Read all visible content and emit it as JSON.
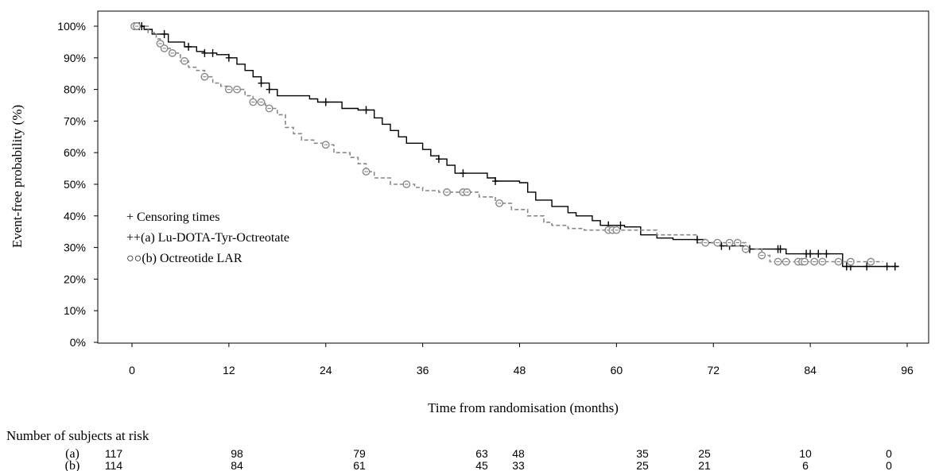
{
  "chart_data": {
    "type": "line",
    "xlabel": "Time from randomisation (months)",
    "ylabel": "Event-free probability (%)",
    "xlim": [
      0,
      96
    ],
    "ylim": [
      0,
      100
    ],
    "x_ticks": [
      0,
      12,
      24,
      36,
      48,
      60,
      72,
      84,
      96
    ],
    "y_ticks": [
      0,
      10,
      20,
      30,
      40,
      50,
      60,
      70,
      80,
      90,
      100
    ],
    "y_tick_suffix": "%",
    "grid": false,
    "legend": {
      "placement": "middle-left",
      "entries": [
        {
          "marker": "+",
          "label": "Censoring times"
        },
        {
          "marker": "++",
          "label": "(a) Lu-DOTA-Tyr-Octreotate"
        },
        {
          "marker": "○○",
          "label": "(b) Octreotide LAR"
        }
      ]
    },
    "series": [
      {
        "name": "(a) Lu-DOTA-Tyr-Octreotate",
        "color": "#000000",
        "line_style": "solid",
        "censor_marker": "+",
        "steps": [
          [
            0,
            100
          ],
          [
            1.5,
            99
          ],
          [
            2.5,
            97.5
          ],
          [
            4.5,
            95
          ],
          [
            6.5,
            93.5
          ],
          [
            8,
            92
          ],
          [
            9,
            91.5
          ],
          [
            10.5,
            91
          ],
          [
            12,
            90
          ],
          [
            13,
            88
          ],
          [
            14,
            86
          ],
          [
            15,
            84
          ],
          [
            16,
            82
          ],
          [
            17,
            80
          ],
          [
            18,
            78
          ],
          [
            20,
            78
          ],
          [
            22,
            77
          ],
          [
            23,
            76
          ],
          [
            26,
            74
          ],
          [
            28,
            73.5
          ],
          [
            30,
            71
          ],
          [
            31,
            69
          ],
          [
            32,
            67
          ],
          [
            33,
            65
          ],
          [
            34,
            63
          ],
          [
            36,
            61
          ],
          [
            37,
            59
          ],
          [
            38,
            58
          ],
          [
            39,
            56
          ],
          [
            40,
            53.5
          ],
          [
            44,
            52
          ],
          [
            45,
            51
          ],
          [
            48,
            50.5
          ],
          [
            49,
            47.5
          ],
          [
            50,
            45
          ],
          [
            52,
            43
          ],
          [
            54,
            41
          ],
          [
            55,
            40
          ],
          [
            57,
            38.5
          ],
          [
            58,
            37
          ],
          [
            61,
            36.5
          ],
          [
            63,
            34
          ],
          [
            65,
            33
          ],
          [
            67,
            32.5
          ],
          [
            71,
            31.5
          ],
          [
            73,
            30.5
          ],
          [
            76,
            29.5
          ],
          [
            81,
            28
          ],
          [
            88,
            24
          ],
          [
            95,
            24
          ]
        ],
        "censor_x": [
          0.3,
          0.6,
          0.9,
          1.2,
          4,
          7,
          9,
          10,
          12,
          16,
          17,
          24,
          29,
          38,
          41,
          45,
          59,
          60.5,
          70,
          73,
          74,
          76,
          76.5,
          80,
          80.3,
          83.5,
          84,
          85,
          86,
          88.5,
          89,
          91,
          93.5,
          94.5
        ]
      },
      {
        "name": "(b) Octreotide LAR",
        "color": "#888888",
        "line_style": "dashed",
        "censor_marker": "○",
        "steps": [
          [
            0,
            100
          ],
          [
            2,
            98
          ],
          [
            3,
            96
          ],
          [
            3.5,
            94.5
          ],
          [
            4,
            93
          ],
          [
            5,
            91.5
          ],
          [
            6,
            89
          ],
          [
            7,
            87
          ],
          [
            8,
            86
          ],
          [
            9,
            84
          ],
          [
            10,
            82
          ],
          [
            11,
            81
          ],
          [
            12,
            80
          ],
          [
            14,
            78
          ],
          [
            15,
            76
          ],
          [
            16.5,
            75
          ],
          [
            17,
            74
          ],
          [
            18,
            72
          ],
          [
            19,
            68
          ],
          [
            20,
            66
          ],
          [
            21,
            64
          ],
          [
            22.5,
            63
          ],
          [
            24,
            62.5
          ],
          [
            25,
            60
          ],
          [
            27,
            58.5
          ],
          [
            28,
            56.5
          ],
          [
            29,
            54
          ],
          [
            30,
            52
          ],
          [
            32,
            50
          ],
          [
            35,
            49
          ],
          [
            36,
            48
          ],
          [
            38,
            47.5
          ],
          [
            43,
            46
          ],
          [
            45,
            44
          ],
          [
            47,
            42
          ],
          [
            49,
            40
          ],
          [
            51,
            38
          ],
          [
            52,
            37
          ],
          [
            54,
            36
          ],
          [
            56,
            35.5
          ],
          [
            63,
            35.5
          ],
          [
            65,
            34
          ],
          [
            70,
            31.5
          ],
          [
            76,
            29.5
          ],
          [
            78,
            27.5
          ],
          [
            79,
            25.5
          ],
          [
            93,
            25.5
          ]
        ],
        "censor_x": [
          0.3,
          0.6,
          3.5,
          4,
          5,
          6.5,
          9,
          12,
          13,
          15,
          16,
          17,
          24,
          29,
          34,
          39,
          41,
          41.5,
          45.5,
          59,
          59.5,
          60,
          71,
          72.5,
          74,
          75,
          76,
          78,
          80,
          81,
          82.5,
          83,
          83.3,
          84.5,
          85.5,
          87.5,
          89,
          91.5
        ]
      }
    ],
    "risk_table": {
      "title": "Number of subjects at risk",
      "times": [
        0,
        12,
        24,
        36,
        48,
        60,
        72,
        84,
        96
      ],
      "rows": [
        {
          "label": "(a)",
          "values": [
            117,
            98,
            79,
            63,
            48,
            35,
            25,
            10,
            0
          ]
        },
        {
          "label": "(b)",
          "values": [
            114,
            84,
            61,
            45,
            33,
            25,
            21,
            6,
            0
          ]
        }
      ]
    }
  }
}
